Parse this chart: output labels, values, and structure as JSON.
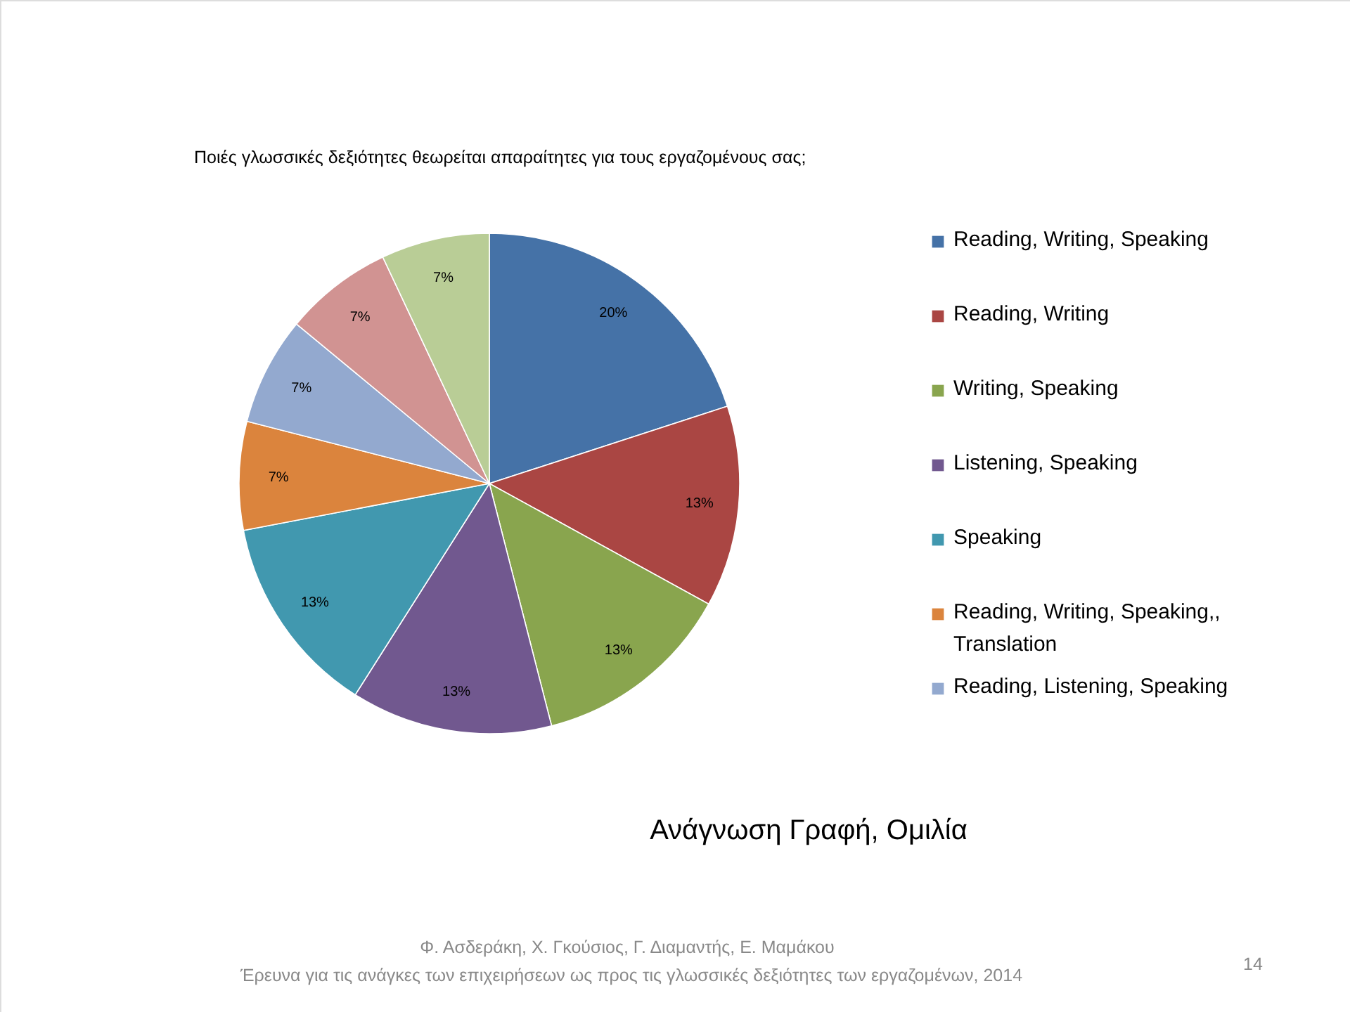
{
  "chart_data": {
    "type": "pie",
    "title": "Ποιές γλωσσικές δεξιότητες θεωρείται απαραίτητες για τους εργαζομένους σας;",
    "categories": [
      "Reading, Writing, Speaking",
      "Reading, Writing",
      "Writing, Speaking",
      "Listening, Speaking",
      "Speaking",
      "Reading, Writing, Speaking,, Translation",
      "Reading, Listening, Speaking",
      null,
      null
    ],
    "values": [
      20,
      13,
      13,
      13,
      13,
      7,
      7,
      7,
      7
    ],
    "colors": [
      "#4572a7",
      "#aa4643",
      "#89a54e",
      "#71588f",
      "#4198af",
      "#db843d",
      "#93a9cf",
      "#d19392",
      "#b9cd96"
    ],
    "value_labels": [
      "20%",
      "13%",
      "13%",
      "13%",
      "13%",
      "7%",
      "7%",
      "7%",
      "7%"
    ],
    "legend": "right",
    "annotations": [
      "Ανάγνωση Γραφή, Ομιλία",
      "Φ. Ασδεράκη, Χ. Γκούσιος, Γ. Διαμαντής, Ε. Μαμάκου",
      "Έρευνα για τις ανάγκες των επιχειρήσεων ως προς τις γλωσσικές δεξιότητες των εργαζομένων, 2014",
      "14"
    ]
  }
}
